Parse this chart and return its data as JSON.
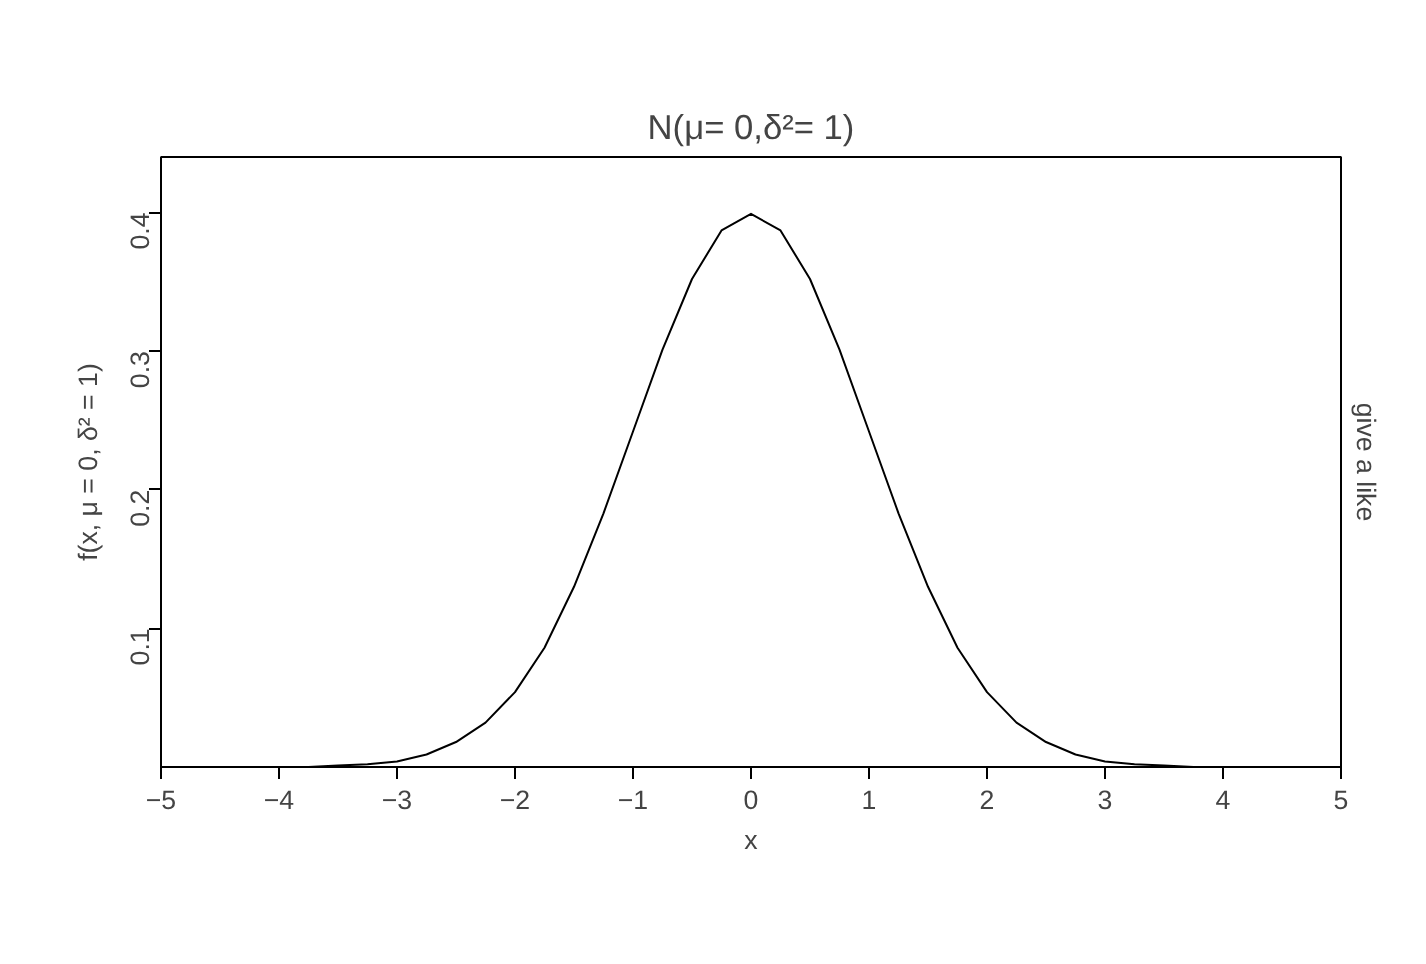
{
  "chart_data": {
    "type": "line",
    "title": "N(μ= 0,δ²= 1)",
    "xlabel": "x",
    "ylabel": "f(x, μ = 0, δ² = 1)",
    "y2label": "give a like",
    "x": [
      -4,
      -3.75,
      -3.5,
      -3.25,
      -3,
      -2.75,
      -2.5,
      -2.25,
      -2,
      -1.75,
      -1.5,
      -1.25,
      -1,
      -0.75,
      -0.5,
      -0.25,
      0,
      0.25,
      0.5,
      0.75,
      1,
      1.25,
      1.5,
      1.75,
      2,
      2.25,
      2.5,
      2.75,
      3,
      3.25,
      3.5,
      3.75,
      4
    ],
    "series": [
      {
        "color": "#000000",
        "values": [
          0.0,
          0.0,
          0.001,
          0.002,
          0.004,
          0.009,
          0.018,
          0.032,
          0.054,
          0.086,
          0.13,
          0.183,
          0.242,
          0.301,
          0.352,
          0.387,
          0.399,
          0.387,
          0.352,
          0.301,
          0.242,
          0.183,
          0.13,
          0.086,
          0.054,
          0.032,
          0.018,
          0.009,
          0.004,
          0.002,
          0.001,
          0.0,
          0.0
        ]
      }
    ],
    "xlim": [
      -5,
      5
    ],
    "ylim": [
      0,
      0.44
    ],
    "xticks": [
      -5,
      -4,
      -3,
      -2,
      -1,
      0,
      1,
      2,
      3,
      4,
      5
    ],
    "yticks": [
      0.1,
      0.2,
      0.3,
      0.4
    ],
    "grid": false,
    "marker": "none",
    "line_style": "solid"
  }
}
